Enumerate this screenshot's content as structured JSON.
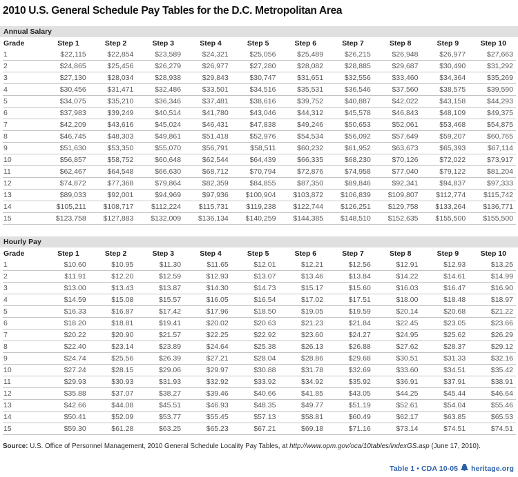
{
  "title": "2010 U.S. General Schedule Pay Tables for the D.C. Metropolitan Area",
  "colors": {
    "accent": "#2B5FA6",
    "section_bar": "#E0E0E0",
    "row_rule": "#C4C4C4"
  },
  "chart_data": [
    {
      "type": "table",
      "title": "Annual Salary",
      "columns": [
        "Grade",
        "Step 1",
        "Step 2",
        "Step 3",
        "Step 4",
        "Step 5",
        "Step 6",
        "Step 7",
        "Step 8",
        "Step 9",
        "Step 10"
      ],
      "rows": [
        [
          "1",
          "$22,115",
          "$22,854",
          "$23,589",
          "$24,321",
          "$25,056",
          "$25,489",
          "$26,215",
          "$26,948",
          "$26,977",
          "$27,663"
        ],
        [
          "2",
          "$24,865",
          "$25,456",
          "$26,279",
          "$26,977",
          "$27,280",
          "$28,082",
          "$28,885",
          "$29,687",
          "$30,490",
          "$31,292"
        ],
        [
          "3",
          "$27,130",
          "$28,034",
          "$28,938",
          "$29,843",
          "$30,747",
          "$31,651",
          "$32,556",
          "$33,460",
          "$34,364",
          "$35,269"
        ],
        [
          "4",
          "$30,456",
          "$31,471",
          "$32,486",
          "$33,501",
          "$34,516",
          "$35,531",
          "$36,546",
          "$37,560",
          "$38,575",
          "$39,590"
        ],
        [
          "5",
          "$34,075",
          "$35,210",
          "$36,346",
          "$37,481",
          "$38,616",
          "$39,752",
          "$40,887",
          "$42,022",
          "$43,158",
          "$44,293"
        ],
        [
          "6",
          "$37,983",
          "$39,249",
          "$40,514",
          "$41,780",
          "$43,046",
          "$44,312",
          "$45,578",
          "$46,843",
          "$48,109",
          "$49,375"
        ],
        [
          "7",
          "$42,209",
          "$43,616",
          "$45,024",
          "$46,431",
          "$47,838",
          "$49,246",
          "$50,653",
          "$52,061",
          "$53,468",
          "$54,875"
        ],
        [
          "8",
          "$46,745",
          "$48,303",
          "$49,861",
          "$51,418",
          "$52,976",
          "$54,534",
          "$56,092",
          "$57,649",
          "$59,207",
          "$60,765"
        ],
        [
          "9",
          "$51,630",
          "$53,350",
          "$55,070",
          "$56,791",
          "$58,511",
          "$60,232",
          "$61,952",
          "$63,673",
          "$65,393",
          "$67,114"
        ],
        [
          "10",
          "$56,857",
          "$58,752",
          "$60,648",
          "$62,544",
          "$64,439",
          "$66,335",
          "$68,230",
          "$70,126",
          "$72,022",
          "$73,917"
        ],
        [
          "11",
          "$62,467",
          "$64,548",
          "$66,630",
          "$68,712",
          "$70,794",
          "$72,876",
          "$74,958",
          "$77,040",
          "$79,122",
          "$81,204"
        ],
        [
          "12",
          "$74,872",
          "$77,368",
          "$79,864",
          "$82,359",
          "$84,855",
          "$87,350",
          "$89,846",
          "$92,341",
          "$94,837",
          "$97,333"
        ],
        [
          "13",
          "$89,033",
          "$92,001",
          "$94,969",
          "$97,936",
          "$100,904",
          "$103,872",
          "$106,839",
          "$109,807",
          "$112,774",
          "$115,742"
        ],
        [
          "14",
          "$105,211",
          "$108,717",
          "$112,224",
          "$115,731",
          "$119,238",
          "$122,744",
          "$126,251",
          "$129,758",
          "$133,264",
          "$136,771"
        ],
        [
          "15",
          "$123,758",
          "$127,883",
          "$132,009",
          "$136,134",
          "$140,259",
          "$144,385",
          "$148,510",
          "$152,635",
          "$155,500",
          "$155,500"
        ]
      ]
    },
    {
      "type": "table",
      "title": "Hourly Pay",
      "columns": [
        "Grade",
        "Step 1",
        "Step 2",
        "Step 3",
        "Step 4",
        "Step 5",
        "Step 6",
        "Step 7",
        "Step 8",
        "Step 9",
        "Step 10"
      ],
      "rows": [
        [
          "1",
          "$10.60",
          "$10.95",
          "$11.30",
          "$11.65",
          "$12.01",
          "$12.21",
          "$12.56",
          "$12.91",
          "$12.93",
          "$13.25"
        ],
        [
          "2",
          "$11.91",
          "$12.20",
          "$12.59",
          "$12.93",
          "$13.07",
          "$13.46",
          "$13.84",
          "$14.22",
          "$14.61",
          "$14.99"
        ],
        [
          "3",
          "$13.00",
          "$13.43",
          "$13.87",
          "$14.30",
          "$14.73",
          "$15.17",
          "$15.60",
          "$16.03",
          "$16.47",
          "$16.90"
        ],
        [
          "4",
          "$14.59",
          "$15.08",
          "$15.57",
          "$16.05",
          "$16.54",
          "$17.02",
          "$17.51",
          "$18.00",
          "$18.48",
          "$18.97"
        ],
        [
          "5",
          "$16.33",
          "$16.87",
          "$17.42",
          "$17.96",
          "$18.50",
          "$19.05",
          "$19.59",
          "$20.14",
          "$20.68",
          "$21.22"
        ],
        [
          "6",
          "$18.20",
          "$18.81",
          "$19.41",
          "$20.02",
          "$20.63",
          "$21.23",
          "$21.84",
          "$22.45",
          "$23.05",
          "$23.66"
        ],
        [
          "7",
          "$20.22",
          "$20.90",
          "$21.57",
          "$22.25",
          "$22.92",
          "$23.60",
          "$24.27",
          "$24.95",
          "$25.62",
          "$26.29"
        ],
        [
          "8",
          "$22.40",
          "$23.14",
          "$23.89",
          "$24.64",
          "$25.38",
          "$26.13",
          "$26.88",
          "$27.62",
          "$28.37",
          "$29.12"
        ],
        [
          "9",
          "$24.74",
          "$25.56",
          "$26.39",
          "$27.21",
          "$28.04",
          "$28.86",
          "$29.68",
          "$30.51",
          "$31.33",
          "$32.16"
        ],
        [
          "10",
          "$27.24",
          "$28.15",
          "$29.06",
          "$29.97",
          "$30.88",
          "$31.78",
          "$32.69",
          "$33.60",
          "$34.51",
          "$35.42"
        ],
        [
          "11",
          "$29.93",
          "$30.93",
          "$31.93",
          "$32.92",
          "$33.92",
          "$34.92",
          "$35.92",
          "$36.91",
          "$37.91",
          "$38.91"
        ],
        [
          "12",
          "$35.88",
          "$37.07",
          "$38.27",
          "$39.46",
          "$40.66",
          "$41.85",
          "$43.05",
          "$44.25",
          "$45.44",
          "$46.64"
        ],
        [
          "13",
          "$42.66",
          "$44.08",
          "$45.51",
          "$46.93",
          "$48.35",
          "$49.77",
          "$51.19",
          "$52.61",
          "$54.04",
          "$55.46"
        ],
        [
          "14",
          "$50.41",
          "$52.09",
          "$53.77",
          "$55.45",
          "$57.13",
          "$58.81",
          "$60.49",
          "$62.17",
          "$63.85",
          "$65.53"
        ],
        [
          "15",
          "$59.30",
          "$61.28",
          "$63.25",
          "$65.23",
          "$67.21",
          "$69.18",
          "$71.16",
          "$73.14",
          "$74.51",
          "$74.51"
        ]
      ]
    }
  ],
  "source": {
    "label": "Source:",
    "before_url": " U.S. Office of Personnel Management, 2010 General Schedule Locality Pay Tables, at ",
    "url": "http://www.opm.gov/oca/10tables/indexGS.asp",
    "after_url": " (June 17, 2010)."
  },
  "footer": {
    "table_ref": "Table 1",
    "bullet": "•",
    "code": "CDA 10-05",
    "site": "heritage.org"
  }
}
